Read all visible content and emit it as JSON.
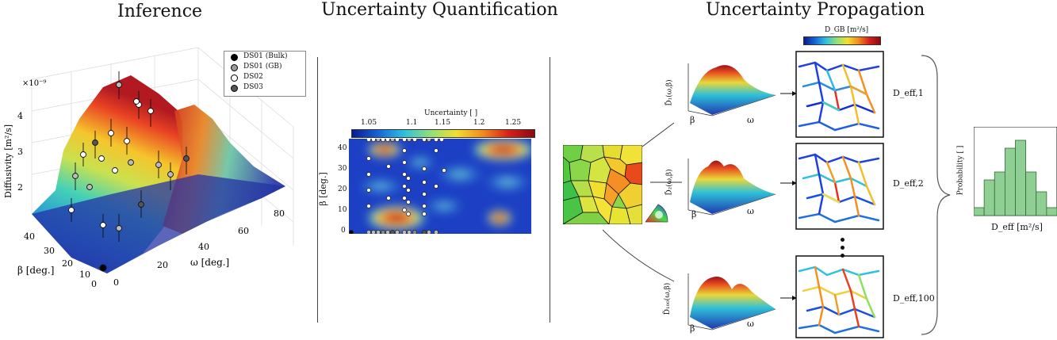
{
  "titles": {
    "inference": "Inference",
    "uq": "Uncertainty Quantification",
    "up": "Uncertainty Propagation"
  },
  "inference": {
    "exponent": "×10⁻⁹",
    "z_label": "Diffusivity [m²/s]",
    "z_ticks": [
      "4",
      "3",
      "2"
    ],
    "beta_label": "β [deg.]",
    "beta_ticks": [
      "40",
      "30",
      "20",
      "10",
      "0"
    ],
    "omega_label": "ω [deg.]",
    "omega_ticks": [
      "0",
      "20",
      "40",
      "60",
      "80"
    ],
    "legend": [
      {
        "label": "DS01 (Bulk)",
        "color": "#000000"
      },
      {
        "label": "DS01 (GB)",
        "color": "#9a9a9a"
      },
      {
        "label": "DS02",
        "color": "#ffffff"
      },
      {
        "label": "DS03",
        "color": "#555555"
      }
    ]
  },
  "uq": {
    "colorbar_title": "Uncertainty [ ]",
    "colorbar_ticks": [
      "1.05",
      "1.1",
      "1.15",
      "1.2",
      "1.25"
    ],
    "y_label": "β [deg.]",
    "y_ticks": [
      "40",
      "30",
      "20",
      "10",
      "0"
    ]
  },
  "up": {
    "colorbar_title": "D_GB [m²/s]",
    "rows": [
      {
        "func": "D̃₁(ω,β)",
        "eff": "D_eff,1"
      },
      {
        "func": "D̃₂(ω,β)",
        "eff": "D_eff,2"
      },
      {
        "func": "D̃₁₀₀(ω,β)",
        "eff": "D_eff,100"
      }
    ],
    "axis_beta": "β",
    "axis_omega": "ω",
    "hist_ylabel": "Probability [ ]",
    "hist_xlabel": "D_eff [m²/s]",
    "histogram": [
      0.1,
      0.45,
      0.55,
      0.85,
      0.95,
      0.55,
      0.3,
      0.1
    ]
  },
  "colors": {
    "hist_fill": "#8fcf94",
    "hist_stroke": "#2f6b35"
  }
}
